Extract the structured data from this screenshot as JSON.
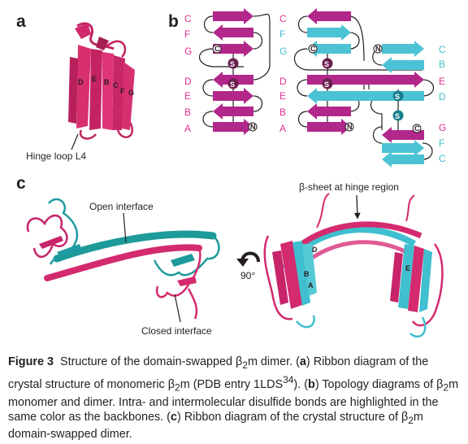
{
  "panels": {
    "a": {
      "letter": "a",
      "hinge_label": "Hinge loop L4",
      "strand_labels": [
        "D",
        "E",
        "B",
        "C",
        "F",
        "G"
      ]
    },
    "b": {
      "letter": "b",
      "monomer_strands": [
        "C",
        "F",
        "G",
        "D",
        "E",
        "B",
        "A"
      ],
      "dimer_left_strands": [
        "C",
        "F",
        "G",
        "D",
        "E",
        "B",
        "A"
      ],
      "dimer_right_strands": [
        "C",
        "B",
        "E",
        "D",
        "G",
        "F",
        "C"
      ],
      "marker_c": "C",
      "marker_s": "S",
      "marker_n": "N",
      "colors": {
        "monomer": "#b2278a",
        "dimer_partner": "#4cc3d4"
      }
    },
    "c": {
      "letter": "c",
      "open_interface": "Open interface",
      "closed_interface": "Closed interface",
      "hinge_sheet": "β-sheet at hinge region",
      "rotation": "90°",
      "strand_labels": [
        "D",
        "B",
        "A",
        "E"
      ]
    }
  },
  "caption": {
    "label": "Figure 3",
    "sentence1_pre": "Structure of the domain-swapped β",
    "sub_2": "2",
    "sentence1_post": "m dimer. (",
    "a_bold": "a",
    "a_text_pre": ") Ribbon diagram of the crystal structure of monomeric β",
    "a_text_mid": "m (PDB entry 1LDS",
    "ref": "34",
    "a_text_post": "). (",
    "b_bold": "b",
    "b_text_pre": ") Topology diagrams of β",
    "b_text_post": "m monomer and dimer. Intra- and intermolecular disulfide bonds are highlighted in the same color as the backbones. (",
    "c_bold": "c",
    "c_text_pre": ") Ribbon diagram of the crystal structure of β",
    "c_text_post": "m domain-swapped dimer."
  }
}
